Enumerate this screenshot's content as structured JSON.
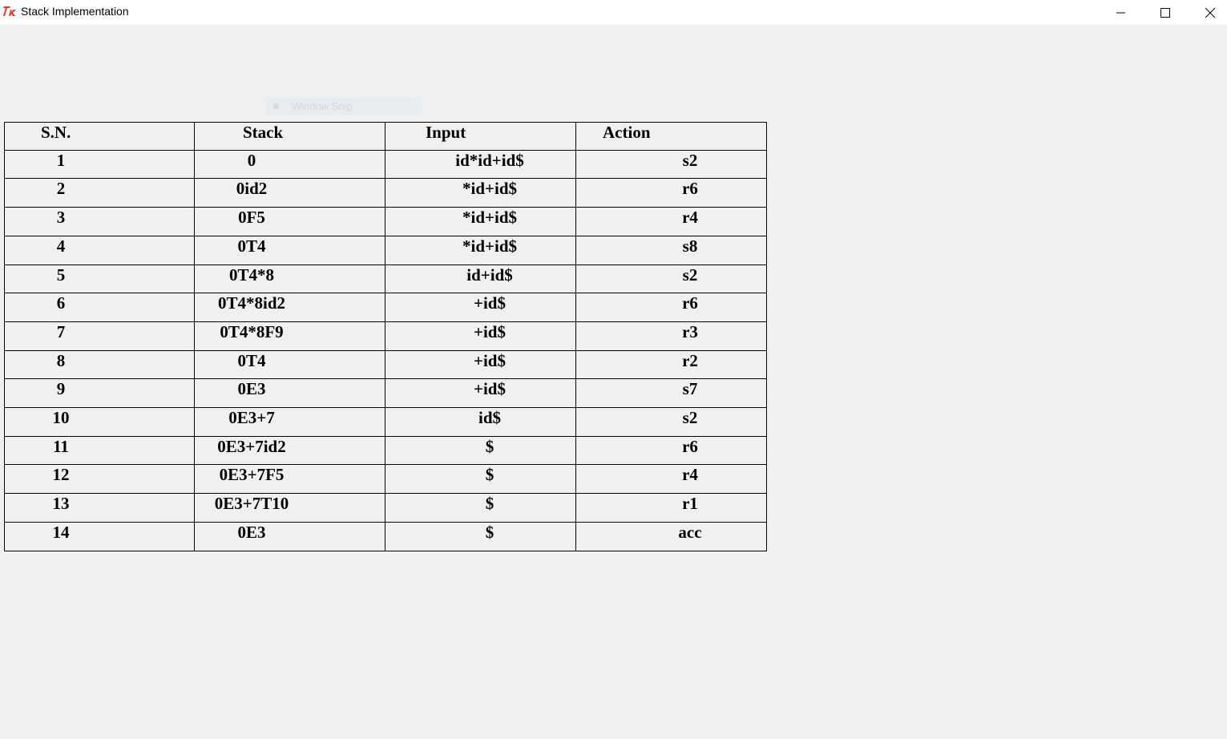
{
  "window": {
    "title": "Stack Implementation",
    "app_icon": "tk-feather-icon",
    "controls": [
      "minimize-icon",
      "maximize-icon",
      "close-icon"
    ]
  },
  "overlay": {
    "label": "Window Snip"
  },
  "table": {
    "headers": [
      "S.N.",
      "Stack",
      "Input",
      "Action"
    ],
    "rows": [
      [
        "1",
        "0",
        "id*id+id$",
        "s2"
      ],
      [
        "2",
        "0id2",
        "*id+id$",
        "r6"
      ],
      [
        "3",
        "0F5",
        "*id+id$",
        "r4"
      ],
      [
        "4",
        "0T4",
        "*id+id$",
        "s8"
      ],
      [
        "5",
        "0T4*8",
        "id+id$",
        "s2"
      ],
      [
        "6",
        "0T4*8id2",
        "+id$",
        "r6"
      ],
      [
        "7",
        "0T4*8F9",
        "+id$",
        "r3"
      ],
      [
        "8",
        "0T4",
        "+id$",
        "r2"
      ],
      [
        "9",
        "0E3",
        "+id$",
        "s7"
      ],
      [
        "10",
        "0E3+7",
        "id$",
        "s2"
      ],
      [
        "11",
        "0E3+7id2",
        "$",
        "r6"
      ],
      [
        "12",
        "0E3+7F5",
        "$",
        "r4"
      ],
      [
        "13",
        "0E3+7T10",
        "$",
        "r1"
      ],
      [
        "14",
        "0E3",
        "$",
        "acc"
      ]
    ]
  },
  "colors": {
    "background": "#f0f0f0",
    "titlebar": "#ffffff",
    "grid_lines": "#000000",
    "icon_red": "#e0342b"
  }
}
